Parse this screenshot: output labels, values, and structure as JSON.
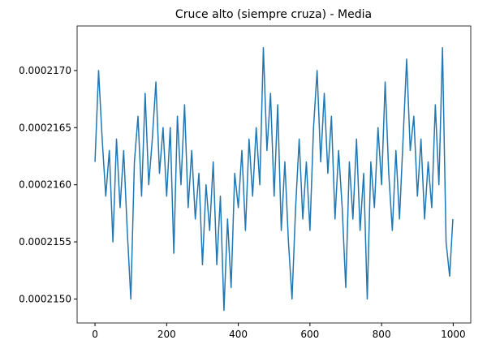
{
  "chart_data": {
    "type": "line",
    "title": "Cruce alto (siempre cruza) - Media",
    "color": "#1f77b4",
    "x": [
      0,
      10,
      20,
      30,
      40,
      50,
      60,
      70,
      80,
      90,
      100,
      110,
      120,
      130,
      140,
      150,
      160,
      170,
      180,
      190,
      200,
      210,
      220,
      230,
      240,
      250,
      260,
      270,
      280,
      290,
      300,
      310,
      320,
      330,
      340,
      350,
      360,
      370,
      380,
      390,
      400,
      410,
      420,
      430,
      440,
      450,
      460,
      470,
      480,
      490,
      500,
      510,
      520,
      530,
      540,
      550,
      560,
      570,
      580,
      590,
      600,
      610,
      620,
      630,
      640,
      650,
      660,
      670,
      680,
      690,
      700,
      710,
      720,
      730,
      740,
      750,
      760,
      770,
      780,
      790,
      800,
      810,
      820,
      830,
      840,
      850,
      860,
      870,
      880,
      890,
      900,
      910,
      920,
      930,
      940,
      950,
      960,
      970,
      980,
      990,
      999
    ],
    "values": [
      0.0002162,
      0.000217,
      0.0002164,
      0.0002159,
      0.0002163,
      0.0002155,
      0.0002164,
      0.0002158,
      0.0002163,
      0.0002156,
      0.000215,
      0.0002162,
      0.0002166,
      0.0002159,
      0.0002168,
      0.000216,
      0.0002164,
      0.0002169,
      0.0002161,
      0.0002165,
      0.0002159,
      0.0002165,
      0.0002154,
      0.0002166,
      0.000216,
      0.0002167,
      0.0002158,
      0.0002163,
      0.0002157,
      0.0002161,
      0.0002153,
      0.000216,
      0.0002156,
      0.0002162,
      0.0002153,
      0.0002159,
      0.0002149,
      0.0002157,
      0.0002151,
      0.0002161,
      0.0002158,
      0.0002163,
      0.0002156,
      0.0002164,
      0.0002159,
      0.0002165,
      0.000216,
      0.0002172,
      0.0002163,
      0.0002168,
      0.0002159,
      0.0002167,
      0.0002156,
      0.0002162,
      0.0002155,
      0.000215,
      0.0002158,
      0.0002164,
      0.0002157,
      0.0002162,
      0.0002156,
      0.0002165,
      0.000217,
      0.0002162,
      0.0002168,
      0.0002161,
      0.0002166,
      0.0002157,
      0.0002163,
      0.0002158,
      0.0002151,
      0.0002162,
      0.0002157,
      0.0002164,
      0.0002156,
      0.0002161,
      0.000215,
      0.0002162,
      0.0002158,
      0.0002165,
      0.000216,
      0.0002169,
      0.0002161,
      0.0002156,
      0.0002163,
      0.0002157,
      0.0002164,
      0.0002171,
      0.0002163,
      0.0002166,
      0.0002159,
      0.0002164,
      0.0002157,
      0.0002162,
      0.0002158,
      0.0002167,
      0.000216,
      0.0002172,
      0.0002155,
      0.0002152,
      0.0002157
    ],
    "xlim": [
      -49.95,
      1048.95
    ],
    "xticks": [
      0,
      200,
      400,
      600,
      800,
      1000
    ],
    "ylim": [
      0.00021479,
      0.00021739
    ],
    "yticks": [
      {
        "value": 0.000215,
        "label": "0.0002150"
      },
      {
        "value": 0.0002155,
        "label": "0.0002155"
      },
      {
        "value": 0.000216,
        "label": "0.0002160"
      },
      {
        "value": 0.0002165,
        "label": "0.0002165"
      },
      {
        "value": 0.000217,
        "label": "0.0002170"
      }
    ]
  }
}
